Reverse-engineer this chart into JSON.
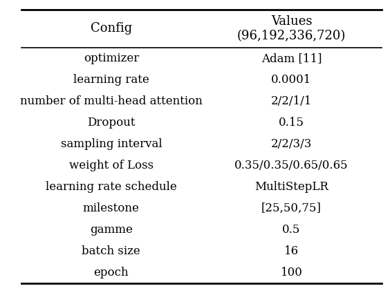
{
  "col_headers": [
    "Config",
    "Values\n(96,192,336,720)"
  ],
  "rows": [
    [
      "optimizer",
      "Adam [11]"
    ],
    [
      "learning rate",
      "0.0001"
    ],
    [
      "number of multi-head attention",
      "2/2/1/1"
    ],
    [
      "Dropout",
      "0.15"
    ],
    [
      "sampling interval",
      "2/2/3/3"
    ],
    [
      "weight of Loss",
      "0.35/0.35/0.65/0.65"
    ],
    [
      "learning rate schedule",
      "MultiStepLR"
    ],
    [
      "milestone",
      "[25,50,75]"
    ],
    [
      "gamme",
      "0.5"
    ],
    [
      "batch size",
      "16"
    ],
    [
      "epoch",
      "100"
    ]
  ],
  "header_fontsize": 13,
  "row_fontsize": 12,
  "background_color": "#ffffff",
  "text_color": "#000000",
  "line_color": "#000000",
  "fig_width": 5.64,
  "fig_height": 4.24,
  "col_split": 0.5
}
